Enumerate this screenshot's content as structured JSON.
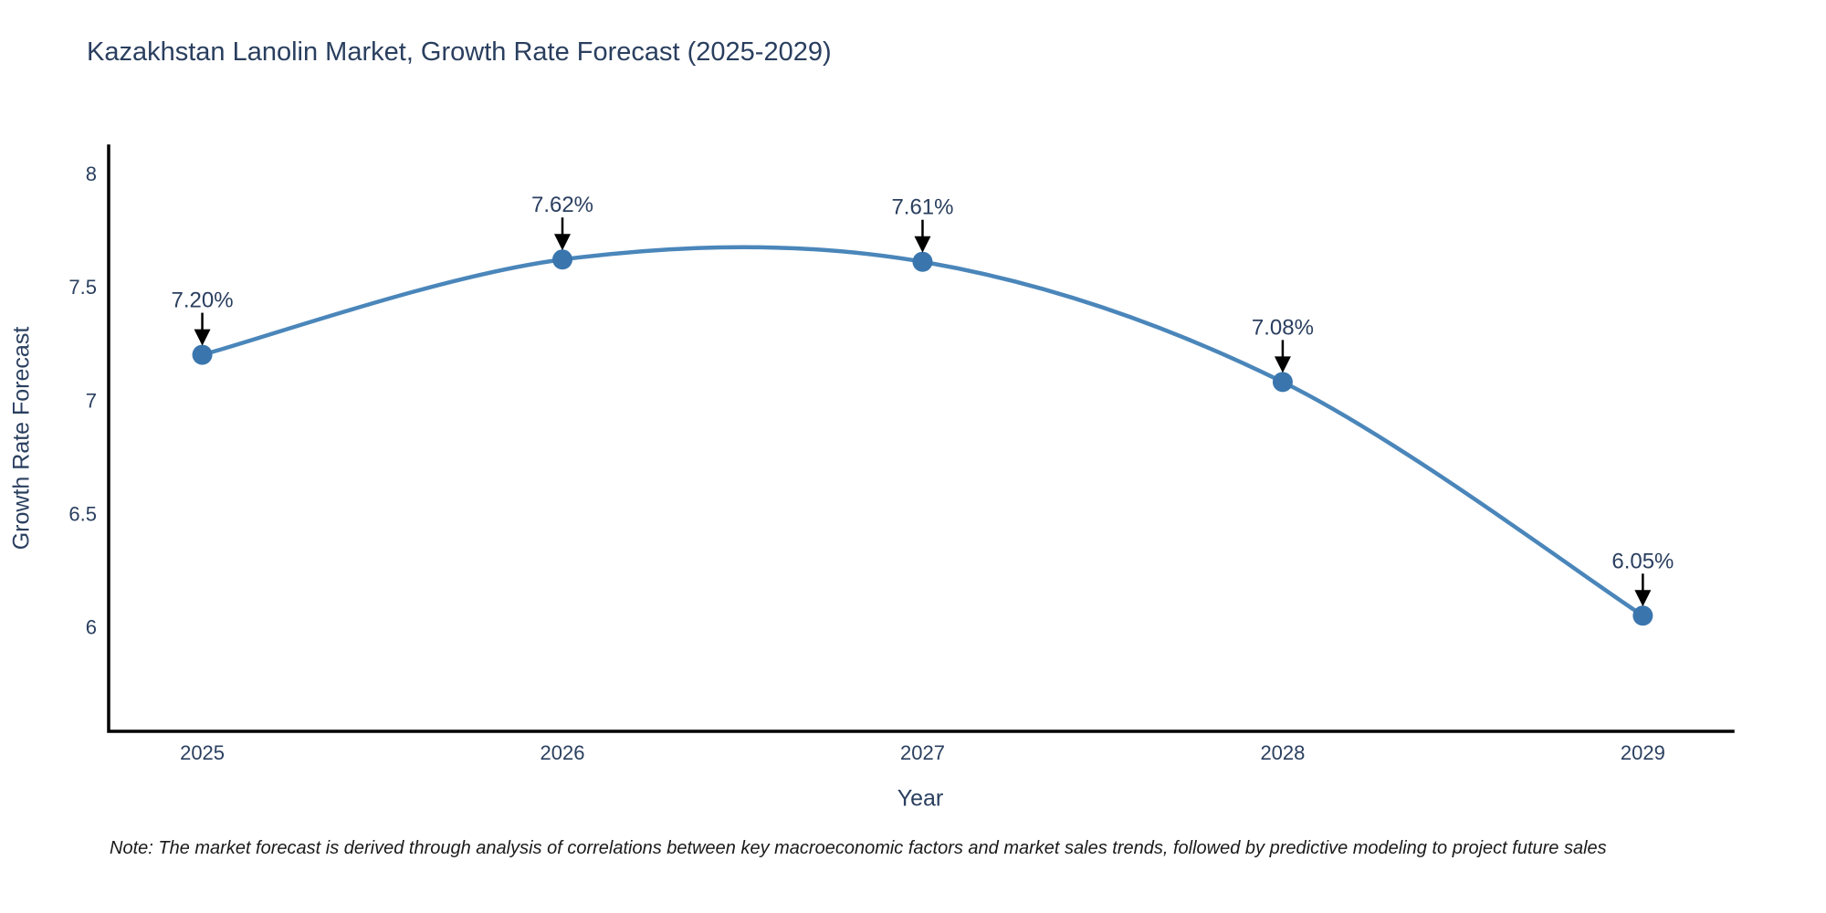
{
  "chart_data": {
    "type": "line",
    "title": "Kazakhstan Lanolin Market, Growth Rate Forecast (2025-2029)",
    "xlabel": "Year",
    "ylabel": "Growth Rate Forecast",
    "x": [
      2025,
      2026,
      2027,
      2028,
      2029
    ],
    "values": [
      7.2,
      7.62,
      7.61,
      7.08,
      6.05
    ],
    "point_labels": [
      "7.20%",
      "7.62%",
      "7.61%",
      "7.08%",
      "6.05%"
    ],
    "x_tick_labels": [
      "2025",
      "2026",
      "2027",
      "2028",
      "2029"
    ],
    "y_ticks": [
      8,
      7.5,
      7,
      6.5,
      6
    ],
    "y_tick_labels": [
      "8",
      "7.5",
      "7",
      "6.5",
      "6"
    ],
    "xlim": [
      2024.74,
      2029.25
    ],
    "ylim": [
      5.54,
      8.12
    ],
    "grid": false,
    "legend": "none",
    "line_shape": "spline",
    "line_color": "#4a86ba",
    "marker_color": "#3a76ad",
    "arrow_color": "#000000",
    "axis_color": "#000000",
    "text_color": "#2a3f5f"
  },
  "note": "Note: The market forecast is derived through analysis of correlations between key macroeconomic factors and market sales trends, followed by predictive modeling to project future sales"
}
